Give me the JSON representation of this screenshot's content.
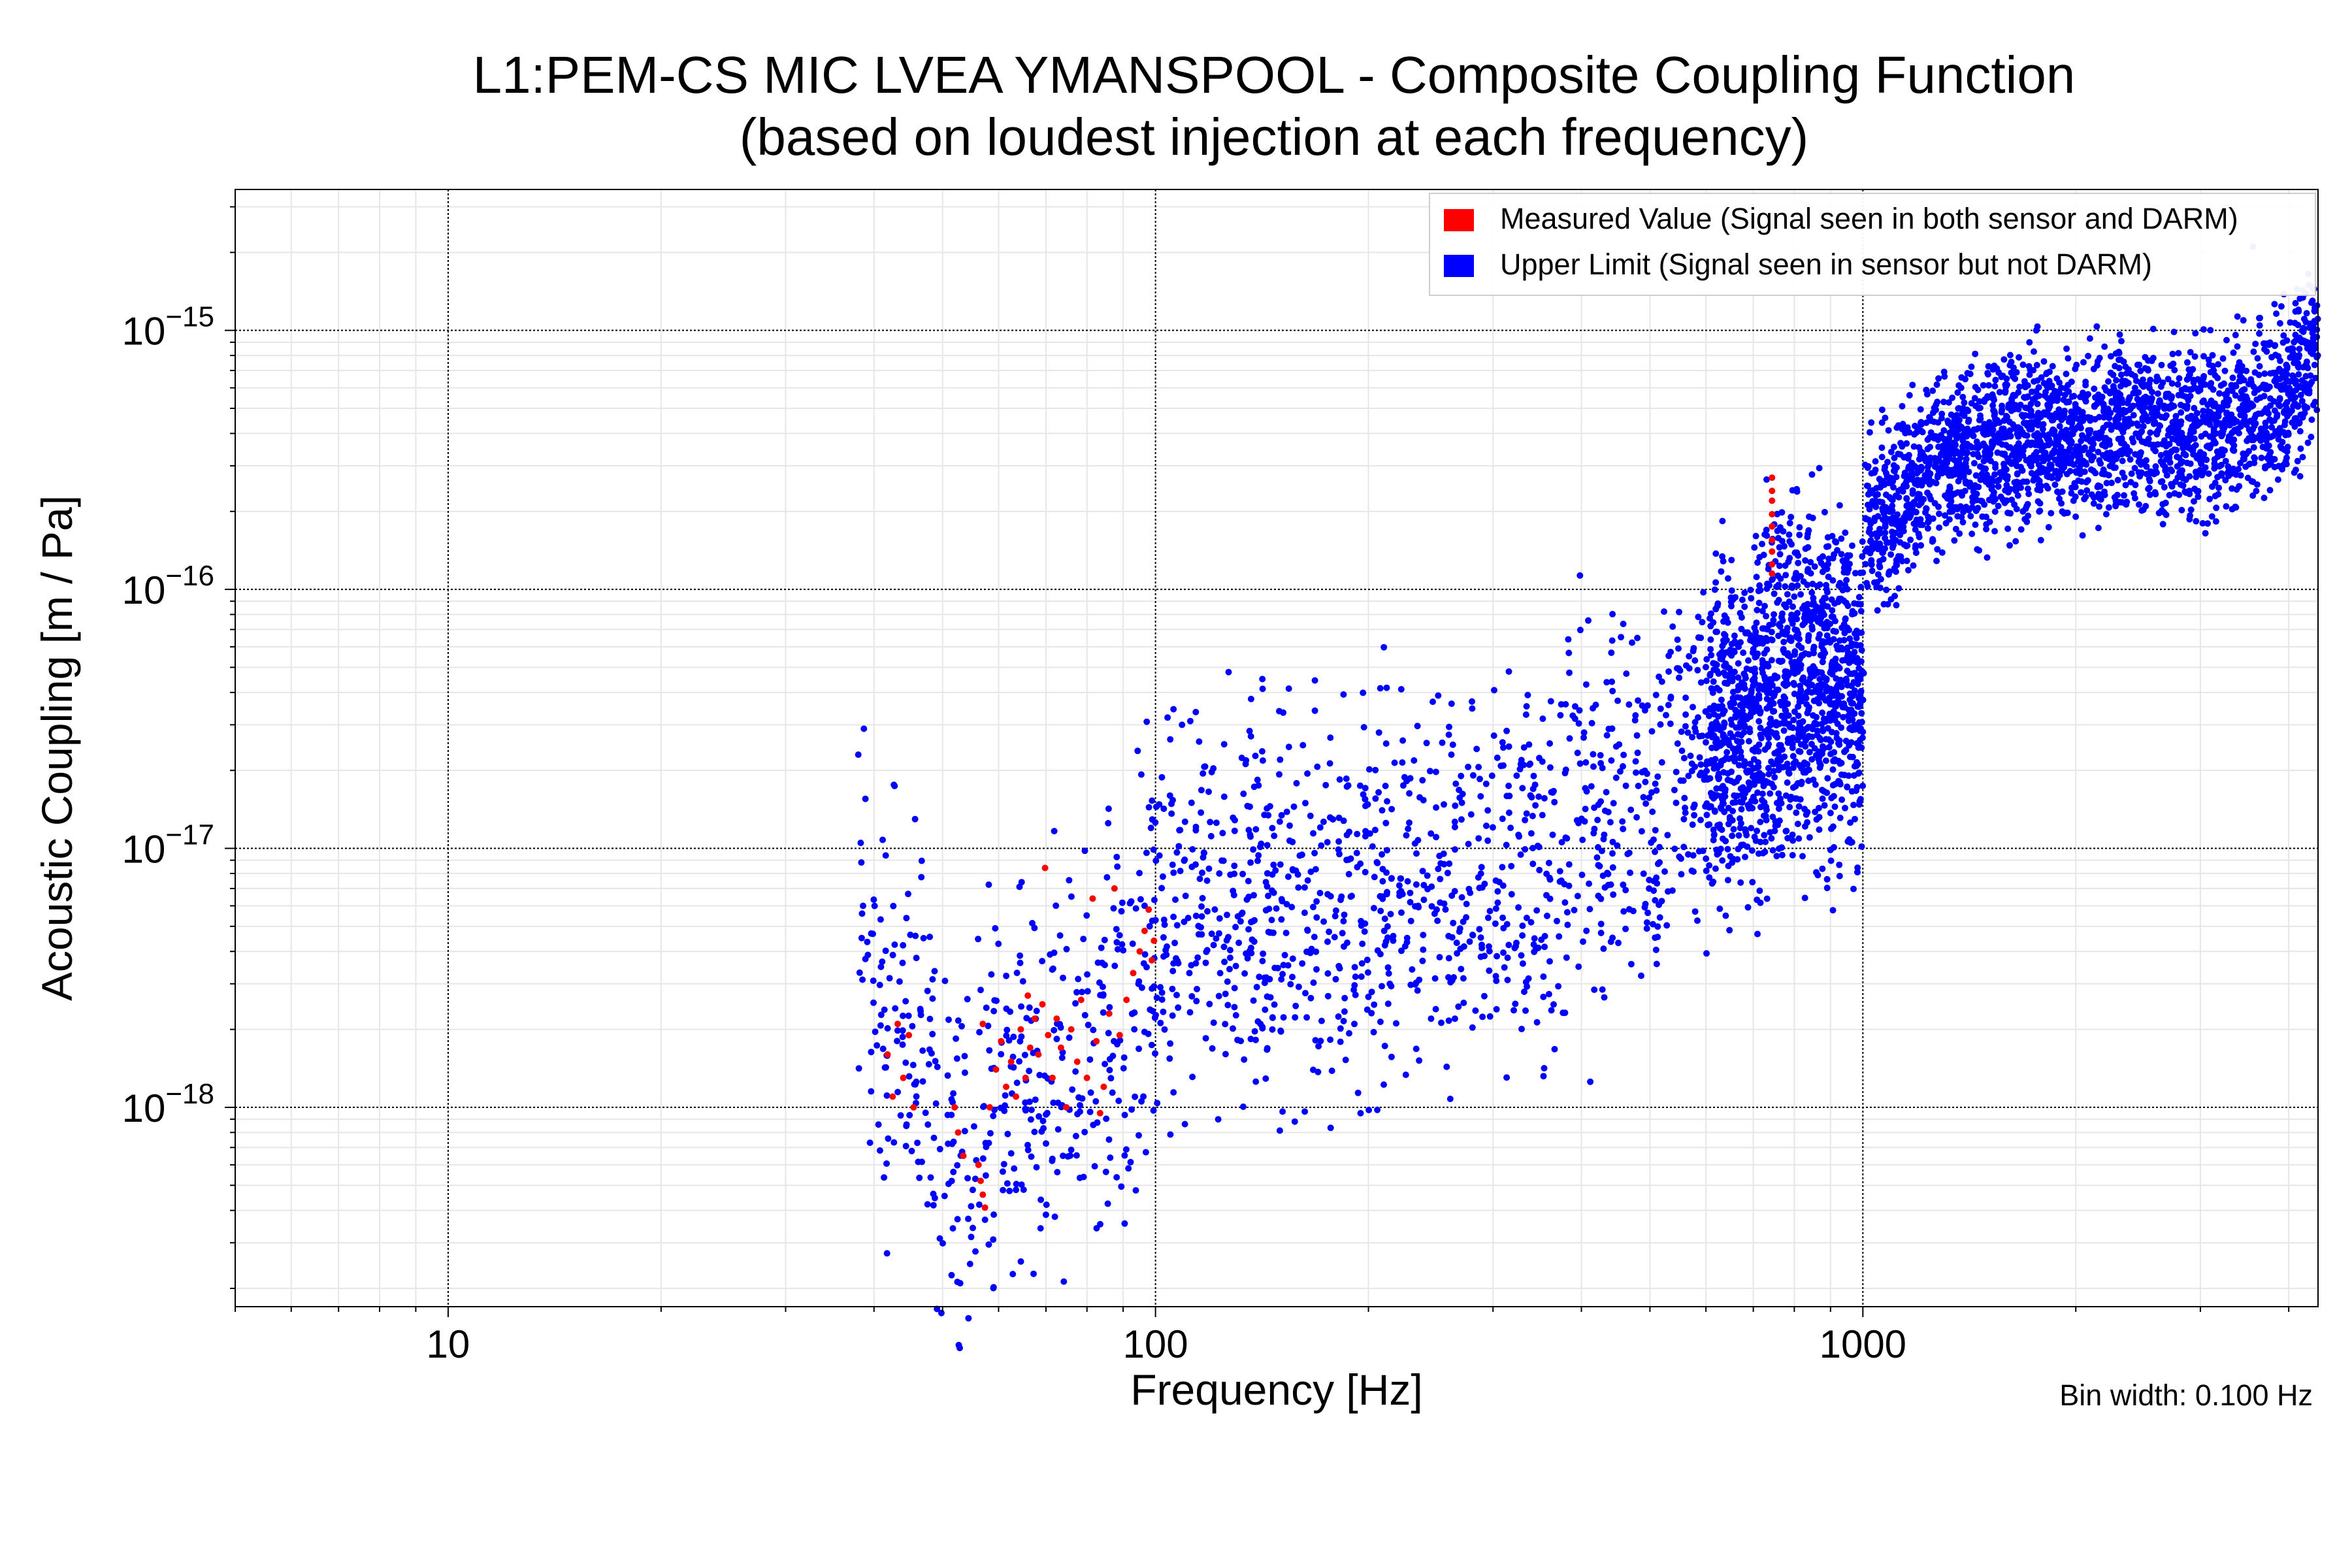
{
  "title_line1": "L1:PEM-CS MIC LVEA YMANSPOOL - Composite Coupling Function",
  "title_line2": "(based on loudest injection at each frequency)",
  "bin_width_note": "Bin width: 0.100 Hz",
  "colors": {
    "measured": "#ff0000",
    "upper_limit": "#0000ff",
    "major_grid": "#000000",
    "minor_grid": "#e6e6e6"
  },
  "chart_data": {
    "type": "scatter",
    "title": "L1:PEM-CS MIC LVEA YMANSPOOL - Composite Coupling Function (based on loudest injection at each frequency)",
    "xlabel": "Frequency [Hz]",
    "ylabel": "Acoustic Coupling [m / Pa]",
    "x_scale": "log",
    "y_scale": "log",
    "xlim": [
      5,
      4400
    ],
    "ylim": [
      1.7e-19,
      3.5e-15
    ],
    "x_ticks": [
      {
        "value": 10,
        "label": "10"
      },
      {
        "value": 100,
        "label": "100"
      },
      {
        "value": 1000,
        "label": "1000"
      }
    ],
    "y_ticks": [
      {
        "value": 1e-18,
        "mantissa": "10",
        "exponent": "−18"
      },
      {
        "value": 1e-17,
        "mantissa": "10",
        "exponent": "−17"
      },
      {
        "value": 1e-16,
        "mantissa": "10",
        "exponent": "−16"
      },
      {
        "value": 1e-15,
        "mantissa": "10",
        "exponent": "−15"
      }
    ],
    "grid": true,
    "legend_position": "top-right",
    "series": [
      {
        "name": "Measured Value (Signal seen in both sensor and DARM)",
        "color": "#ff0000",
        "points": [
          [
            41.8,
            1.6e-18
          ],
          [
            42.5,
            1.1e-18
          ],
          [
            43.2,
            2.1e-18
          ],
          [
            44.0,
            1.3e-18
          ],
          [
            44.8,
            1.9e-18
          ],
          [
            45.5,
            1e-18
          ],
          [
            52.0,
            1e-18
          ],
          [
            52.6,
            8e-19
          ],
          [
            53.5,
            6.5e-19
          ],
          [
            56.2,
            6e-19
          ],
          [
            56.6,
            5.2e-19
          ],
          [
            57.0,
            4.6e-19
          ],
          [
            57.4,
            4.1e-19
          ],
          [
            57.0,
            2.1e-18
          ],
          [
            58.3,
            1e-18
          ],
          [
            59.5,
            1.4e-18
          ],
          [
            60.5,
            1.8e-18
          ],
          [
            61.5,
            1.2e-18
          ],
          [
            62.5,
            1.5e-18
          ],
          [
            63.5,
            1.1e-18
          ],
          [
            64.5,
            2e-18
          ],
          [
            65.5,
            1.3e-18
          ],
          [
            66.0,
            2.7e-18
          ],
          [
            66.5,
            1.7e-18
          ],
          [
            67.5,
            2.2e-18
          ],
          [
            68.3,
            1.6e-18
          ],
          [
            69.2,
            2.5e-18
          ],
          [
            69.8,
            8.4e-18
          ],
          [
            70.5,
            1.9e-18
          ],
          [
            71.5,
            1.3e-18
          ],
          [
            72.5,
            2.2e-18
          ],
          [
            73.5,
            1.7e-18
          ],
          [
            74.8,
            1e-18
          ],
          [
            76.0,
            2e-18
          ],
          [
            77.5,
            1.5e-18
          ],
          [
            78.5,
            2.6e-18
          ],
          [
            80.0,
            1.3e-18
          ],
          [
            81.5,
            6.4e-18
          ],
          [
            82.5,
            1.8e-18
          ],
          [
            83.5,
            9.5e-19
          ],
          [
            84.5,
            1.2e-18
          ],
          [
            86.0,
            2.3e-18
          ],
          [
            87.5,
            7e-18
          ],
          [
            89.0,
            1.9e-18
          ],
          [
            91.0,
            2.6e-18
          ],
          [
            93.0,
            3.3e-18
          ],
          [
            95.0,
            4e-18
          ],
          [
            96.5,
            4.8e-18
          ],
          [
            97.8,
            5.8e-18
          ],
          [
            98.8,
            3.7e-18
          ],
          [
            99.5,
            4.4e-18
          ],
          [
            744.0,
            2.7e-16
          ],
          [
            744.0,
            2.4e-16
          ],
          [
            744.0,
            2.2e-16
          ],
          [
            744.0,
            1.95e-16
          ],
          [
            744.0,
            1.75e-16
          ],
          [
            744.0,
            1.55e-16
          ],
          [
            744.0,
            1.4e-16
          ],
          [
            744.0,
            1.25e-16
          ],
          [
            744.0,
            1.15e-16
          ]
        ]
      },
      {
        "name": "Upper Limit (Signal seen in sensor but not DARM)",
        "color": "#0000ff",
        "points": []
      }
    ]
  },
  "upper_limit_trend": {
    "x": [
      38,
      40,
      45,
      50,
      55,
      60,
      70,
      80,
      90,
      100,
      120,
      150,
      200,
      300,
      400,
      500,
      600,
      700,
      800,
      1000,
      1005,
      1100,
      1200,
      1500,
      2000,
      2500,
      3000,
      3500,
      4000,
      4400
    ],
    "y": [
      5e-18,
      2e-18,
      1.8e-18,
      9e-19,
      8e-19,
      1.2e-18,
      1.4e-18,
      1.7e-18,
      2.4e-18,
      4.5e-18,
      5.5e-18,
      6e-18,
      7e-18,
      8e-18,
      1.2e-17,
      1.5e-17,
      2.3e-17,
      3.2e-17,
      4.5e-17,
      4e-17,
      2e-16,
      2e-16,
      2.7e-16,
      3.7e-16,
      4e-16,
      4.2e-16,
      4e-16,
      4.5e-16,
      5.5e-16,
      1e-15
    ]
  },
  "upper_limit_highlights": [
    [
      38.0,
      2.3e-17
    ],
    [
      38.3,
      1.05e-17
    ],
    [
      38.6,
      6e-18
    ],
    [
      47.0,
      4.5e-18
    ],
    [
      52.5,
      3.7e-19
    ],
    [
      74.0,
      6.5e-19
    ],
    [
      104.0,
      3.2e-17
    ],
    [
      109.0,
      3e-17
    ],
    [
      112.0,
      3.1e-17
    ],
    [
      150.0,
      2.2e-17
    ],
    [
      168.0,
      3.4e-17
    ],
    [
      207.0,
      2.8e-17
    ],
    [
      262.0,
      2.3e-17
    ],
    [
      265.0,
      2.2e-18
    ],
    [
      380.0,
      3.6e-17
    ],
    [
      520.0,
      4.4e-17
    ],
    [
      590.0,
      6.5e-17
    ],
    [
      810.0,
      1.35e-16
    ],
    [
      1950.0,
      7.8e-16
    ],
    [
      3560.0,
      2.1e-15
    ],
    [
      3720.0,
      3.5e-16
    ]
  ]
}
